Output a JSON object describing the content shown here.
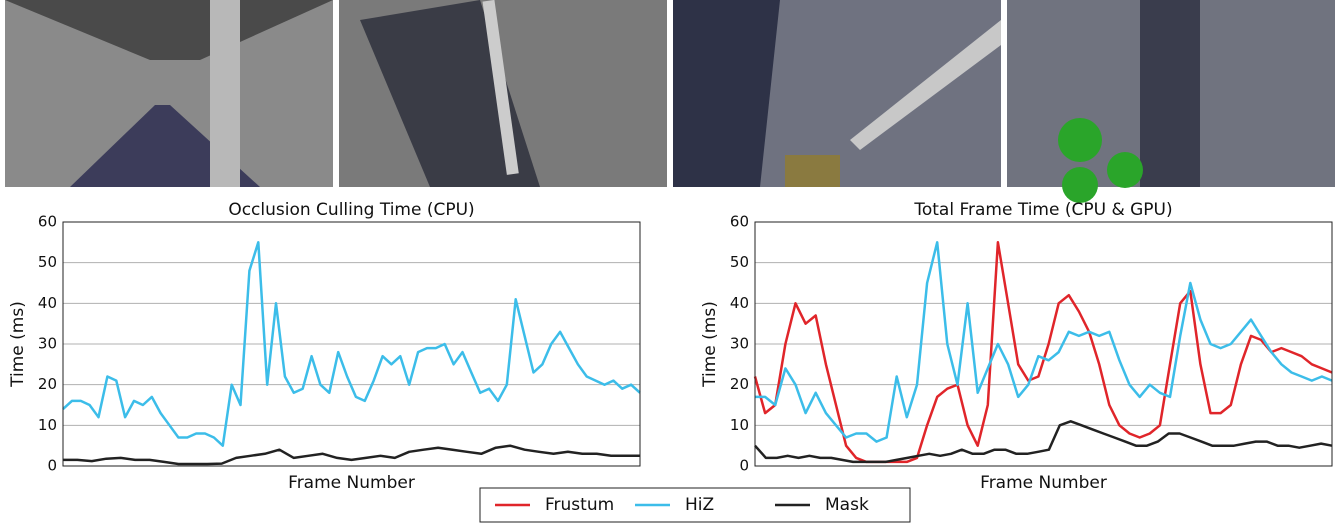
{
  "chart_data": [
    {
      "type": "line",
      "title": "Occlusion Culling Time (CPU)",
      "xlabel": "Frame Number",
      "ylabel": "Time (ms)",
      "ylim": [
        0,
        60
      ],
      "yticks": [
        0,
        10,
        20,
        30,
        40,
        50,
        60
      ],
      "grid": true,
      "series": [
        {
          "name": "HiZ",
          "color": "#3cbde9",
          "values": [
            14,
            16,
            16,
            15,
            12,
            22,
            21,
            12,
            16,
            15,
            17,
            13,
            10,
            7,
            7,
            8,
            8,
            7,
            5,
            20,
            15,
            48,
            55,
            20,
            40,
            22,
            18,
            19,
            27,
            20,
            18,
            28,
            22,
            17,
            16,
            21,
            27,
            25,
            27,
            20,
            28,
            29,
            29,
            30,
            25,
            28,
            23,
            18,
            19,
            16,
            20,
            41,
            32,
            23,
            25,
            30,
            33,
            29,
            25,
            22,
            21,
            20,
            21,
            19,
            20,
            18
          ]
        },
        {
          "name": "Mask",
          "color": "#222222",
          "values": [
            1.5,
            1.5,
            1.2,
            1.8,
            2,
            1.5,
            1.5,
            1,
            0.5,
            0.5,
            0.5,
            0.6,
            2,
            2.5,
            3,
            4,
            2,
            2.5,
            3,
            2,
            1.5,
            2,
            2.5,
            2,
            3.5,
            4,
            4.5,
            4,
            3.5,
            3,
            4.5,
            5,
            4,
            3.5,
            3,
            3.5,
            3,
            3,
            2.5,
            2.5,
            2.5
          ]
        }
      ]
    },
    {
      "type": "line",
      "title": "Total Frame Time (CPU & GPU)",
      "xlabel": "Frame Number",
      "ylabel": "Time (ms)",
      "ylim": [
        0,
        60
      ],
      "yticks": [
        0,
        10,
        20,
        30,
        40,
        50,
        60
      ],
      "grid": true,
      "series": [
        {
          "name": "Frustum",
          "color": "#e0252a",
          "values": [
            22,
            13,
            15,
            30,
            40,
            35,
            37,
            25,
            15,
            5,
            2,
            1,
            1,
            1,
            1,
            1,
            2,
            10,
            17,
            19,
            20,
            10,
            5,
            15,
            55,
            40,
            25,
            21,
            22,
            30,
            40,
            42,
            38,
            33,
            25,
            15,
            10,
            8,
            7,
            8,
            10,
            25,
            40,
            43,
            25,
            13,
            13,
            15,
            25,
            32,
            31,
            28,
            29,
            28,
            27,
            25,
            24,
            23
          ]
        },
        {
          "name": "HiZ",
          "color": "#3cbde9",
          "values": [
            17,
            17,
            15,
            24,
            20,
            13,
            18,
            13,
            10,
            7,
            8,
            8,
            6,
            7,
            22,
            12,
            20,
            45,
            55,
            30,
            20,
            40,
            18,
            24,
            30,
            25,
            17,
            20,
            27,
            26,
            28,
            33,
            32,
            33,
            32,
            33,
            26,
            20,
            17,
            20,
            18,
            17,
            32,
            45,
            36,
            30,
            29,
            30,
            33,
            36,
            32,
            28,
            25,
            23,
            22,
            21,
            22,
            21
          ]
        },
        {
          "name": "Mask",
          "color": "#222222",
          "values": [
            5,
            2,
            2,
            2.5,
            2,
            2.5,
            2,
            2,
            1.5,
            1,
            1,
            1,
            1,
            1.5,
            2,
            2.5,
            3,
            2.5,
            3,
            4,
            3,
            3,
            4,
            4,
            3,
            3,
            3.5,
            4,
            10,
            11,
            10,
            9,
            8,
            7,
            6,
            5,
            5,
            6,
            8,
            8,
            7,
            6,
            5,
            5,
            5,
            5.5,
            6,
            6,
            5,
            5,
            4.5,
            5,
            5.5,
            5
          ]
        }
      ]
    }
  ]
}
